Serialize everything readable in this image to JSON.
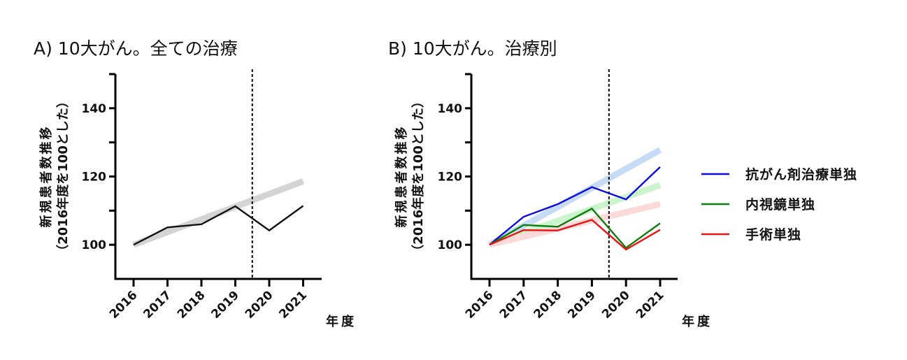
{
  "chart_data": [
    {
      "type": "line",
      "title": "A) 10大がん。全ての治療",
      "ylabel": "新規患者数推移",
      "ylabel2": "（2016年度を100とした）",
      "xlabel": "年度",
      "x": [
        "2016",
        "2017",
        "2018",
        "2019",
        "2020",
        "2021"
      ],
      "ylim": [
        90,
        150
      ],
      "yticks": [
        100,
        120,
        140
      ],
      "yminor": [
        110,
        130,
        150
      ],
      "vline_between": [
        "2019",
        "2020"
      ],
      "series": [
        {
          "name": "全ての治療",
          "color": "#111111",
          "values": [
            100,
            105.1,
            106.0,
            111.3,
            104.2,
            111.4
          ],
          "trend": {
            "color": "#d4d4d4",
            "values": [
              100,
              118.6
            ]
          }
        }
      ],
      "legend": null
    },
    {
      "type": "line",
      "title": "B) 10大がん。治療別",
      "ylabel": "新規患者数推移",
      "ylabel2": "（2016年度を100とした）",
      "xlabel": "年度",
      "x": [
        "2016",
        "2017",
        "2018",
        "2019",
        "2020",
        "2021"
      ],
      "ylim": [
        90,
        150
      ],
      "yticks": [
        100,
        120,
        140
      ],
      "yminor": [
        110,
        130,
        150
      ],
      "vline_between": [
        "2019",
        "2020"
      ],
      "series": [
        {
          "name": "抗がん剤治療単独",
          "color": "#0a0ae0",
          "values": [
            100,
            108.2,
            111.9,
            116.9,
            113.3,
            122.8
          ],
          "trend": {
            "color": "#c6dcf6",
            "values": [
              100,
              127.8
            ]
          }
        },
        {
          "name": "内視鏡単独",
          "color": "#0b7d0b",
          "values": [
            100,
            105.8,
            105.3,
            110.6,
            99.1,
            106.3
          ],
          "trend": {
            "color": "#cdf5cd",
            "values": [
              100,
              117.5
            ]
          }
        },
        {
          "name": "手術単独",
          "color": "#e81414",
          "values": [
            100,
            104.3,
            104.2,
            107.3,
            98.6,
            104.4
          ],
          "trend": {
            "color": "#fcdada",
            "values": [
              100,
              111.9
            ]
          }
        }
      ],
      "legend": "right"
    }
  ]
}
